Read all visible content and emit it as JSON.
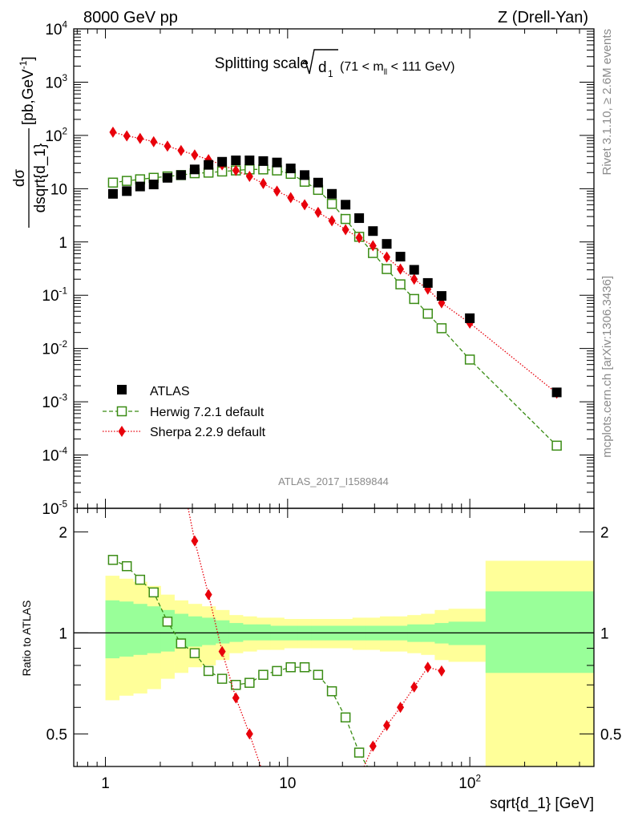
{
  "header": {
    "left": "8000 GeV pp",
    "right": "Z (Drell-Yan)"
  },
  "side_labels": {
    "rivet": "Rivet 3.1.10, ≥ 2.6M events",
    "mcplots": "mcplots.cern.ch [arXiv:1306.3436]"
  },
  "watermark": "ATLAS_2017_I1589844",
  "chart_data": [
    {
      "type": "scatter",
      "panel": "main",
      "title": "Splitting scale √d₁ (71 < m_ll < 111 GeV)",
      "title_parts": {
        "main": "Splitting scale",
        "root_arg": "d",
        "root_sub": "1",
        "range_pre": "(71 < m",
        "range_sub": "ll",
        "range_post": " < 111 GeV)"
      },
      "ylabel": "dσ/dsqrt{d_1} [pb,GeV⁻¹]",
      "ylabel_parts": {
        "numerator": "dσ",
        "denominator": "dsqrt{d_1}",
        "unit": "[pb,GeV",
        "unit_sup": "-1",
        "unit_close": "]"
      },
      "xlabel": "",
      "xscale": "log",
      "yscale": "log",
      "xlim": [
        0.67,
        480
      ],
      "ylim": [
        1e-05,
        10000
      ],
      "y_ticks": [
        {
          "value": 1e-05,
          "label_base": "10",
          "label_exp": "-5"
        },
        {
          "value": 0.0001,
          "label_base": "10",
          "label_exp": "-4"
        },
        {
          "value": 0.001,
          "label_base": "10",
          "label_exp": "-3"
        },
        {
          "value": 0.01,
          "label_base": "10",
          "label_exp": "-2"
        },
        {
          "value": 0.1,
          "label_base": "10",
          "label_exp": "-1"
        },
        {
          "value": 1,
          "label_base": "1",
          "label_exp": ""
        },
        {
          "value": 10,
          "label_base": "10",
          "label_exp": ""
        },
        {
          "value": 100,
          "label_base": "10",
          "label_exp": "2"
        },
        {
          "value": 1000,
          "label_base": "10",
          "label_exp": "3"
        },
        {
          "value": 10000,
          "label_base": "10",
          "label_exp": "4"
        }
      ],
      "legend_position": "bottom-left",
      "series": [
        {
          "name": "ATLAS",
          "marker": "filled-square",
          "color": "#000000",
          "x": [
            1.1,
            1.31,
            1.55,
            1.84,
            2.19,
            2.6,
            3.09,
            3.68,
            4.37,
            5.2,
            6.18,
            7.35,
            8.74,
            10.4,
            12.4,
            14.7,
            17.5,
            20.8,
            24.7,
            29.4,
            35.0,
            41.6,
            49.5,
            58.8,
            70.0,
            100,
            300
          ],
          "y": [
            8,
            9,
            11,
            12,
            16,
            18,
            23,
            28,
            32,
            34,
            34,
            33,
            31,
            24,
            18,
            13,
            8,
            5,
            2.8,
            1.6,
            0.92,
            0.53,
            0.3,
            0.17,
            0.097,
            0.037,
            0.0015
          ]
        },
        {
          "name": "Herwig 7.2.1 default",
          "marker": "open-square",
          "line": "dashed",
          "color": "#3a8c14",
          "x": [
            1.1,
            1.31,
            1.55,
            1.84,
            2.19,
            2.6,
            3.09,
            3.68,
            4.37,
            5.2,
            6.18,
            7.35,
            8.74,
            10.4,
            12.4,
            14.7,
            17.5,
            20.8,
            24.7,
            29.4,
            35.0,
            41.6,
            49.5,
            58.8,
            70.0,
            100,
            300
          ],
          "y": [
            13,
            14,
            15,
            16,
            17,
            18,
            19.5,
            20,
            21,
            22,
            23,
            23,
            22,
            19,
            13.5,
            9.5,
            5.2,
            2.7,
            1.25,
            0.62,
            0.31,
            0.16,
            0.085,
            0.045,
            0.024,
            0.0062,
            0.00015
          ]
        },
        {
          "name": "Sherpa 2.2.9 default",
          "marker": "filled-diamond",
          "line": "dotted",
          "color": "#e8000b",
          "x": [
            1.1,
            1.31,
            1.55,
            1.84,
            2.19,
            2.6,
            3.09,
            3.68,
            4.37,
            5.2,
            6.18,
            7.35,
            8.74,
            10.4,
            12.4,
            14.7,
            17.5,
            20.8,
            24.7,
            29.4,
            35.0,
            41.6,
            49.5,
            58.8,
            70.0,
            100,
            300
          ],
          "y": [
            115,
            98,
            88,
            76,
            63,
            52,
            43,
            35,
            28,
            22,
            17,
            12.5,
            9,
            6.8,
            5,
            3.6,
            2.5,
            1.7,
            1.2,
            0.85,
            0.52,
            0.31,
            0.2,
            0.13,
            0.072,
            0.03,
            0.00145
          ]
        }
      ]
    },
    {
      "type": "line",
      "panel": "ratio",
      "ylabel": "Ratio to ATLAS",
      "xlabel": "sqrt{d_1} [GeV]",
      "xscale": "log",
      "yscale": "log",
      "xlim": [
        0.67,
        480
      ],
      "ylim": [
        0.4,
        2.35
      ],
      "x_ticks": [
        {
          "value": 1,
          "label_base": "1",
          "label_exp": ""
        },
        {
          "value": 10,
          "label_base": "10",
          "label_exp": ""
        },
        {
          "value": 100,
          "label_base": "10",
          "label_exp": "2"
        }
      ],
      "y_ticks": [
        {
          "value": 0.5,
          "label": "0.5"
        },
        {
          "value": 1,
          "label": "1"
        },
        {
          "value": 2,
          "label": "2"
        }
      ],
      "uncertainty_bands": {
        "bin_edges": [
          1.0,
          1.19,
          1.42,
          1.69,
          2.01,
          2.39,
          2.84,
          3.38,
          4.02,
          4.78,
          5.68,
          6.76,
          8.04,
          9.56,
          11.4,
          13.5,
          16.1,
          19.1,
          22.7,
          27.0,
          32.1,
          38.2,
          45.4,
          54.0,
          64.2,
          76.4,
          122,
          480
        ],
        "total_up": [
          1.48,
          1.45,
          1.42,
          1.38,
          1.3,
          1.25,
          1.22,
          1.2,
          1.17,
          1.13,
          1.12,
          1.11,
          1.11,
          1.1,
          1.1,
          1.1,
          1.1,
          1.1,
          1.11,
          1.11,
          1.12,
          1.12,
          1.13,
          1.14,
          1.17,
          1.18,
          1.64
        ],
        "total_down": [
          0.63,
          0.65,
          0.66,
          0.68,
          0.73,
          0.76,
          0.79,
          0.8,
          0.83,
          0.87,
          0.88,
          0.89,
          0.89,
          0.9,
          0.9,
          0.9,
          0.9,
          0.9,
          0.89,
          0.89,
          0.88,
          0.88,
          0.87,
          0.86,
          0.83,
          0.82,
          0.4
        ],
        "stat_up": [
          1.25,
          1.24,
          1.22,
          1.2,
          1.17,
          1.14,
          1.12,
          1.11,
          1.09,
          1.07,
          1.06,
          1.06,
          1.05,
          1.05,
          1.05,
          1.05,
          1.05,
          1.05,
          1.05,
          1.05,
          1.05,
          1.05,
          1.06,
          1.06,
          1.07,
          1.08,
          1.33
        ],
        "stat_down": [
          0.84,
          0.85,
          0.86,
          0.87,
          0.88,
          0.9,
          0.91,
          0.92,
          0.93,
          0.94,
          0.95,
          0.95,
          0.95,
          0.95,
          0.95,
          0.95,
          0.95,
          0.95,
          0.95,
          0.95,
          0.95,
          0.95,
          0.94,
          0.94,
          0.93,
          0.92,
          0.76
        ],
        "colors": {
          "total": "#ffff99",
          "stat": "#99ff99"
        }
      },
      "series": [
        {
          "name": "Herwig 7.2.1 default",
          "marker": "open-square",
          "line": "dashed",
          "color": "#3a8c14",
          "x": [
            1.1,
            1.31,
            1.55,
            1.84,
            2.19,
            2.6,
            3.09,
            3.68,
            4.37,
            5.2,
            6.18,
            7.35,
            8.74,
            10.4,
            12.4,
            14.7,
            17.5,
            20.8,
            24.7,
            29.4
          ],
          "y": [
            1.65,
            1.58,
            1.44,
            1.32,
            1.08,
            0.93,
            0.87,
            0.77,
            0.73,
            0.7,
            0.71,
            0.75,
            0.77,
            0.79,
            0.79,
            0.75,
            0.67,
            0.56,
            0.44,
            0.375
          ]
        },
        {
          "name": "Sherpa 2.2.9 default",
          "marker": "filled-diamond",
          "line": "dotted",
          "color": "#e8000b",
          "x": [
            2.6,
            3.09,
            3.68,
            4.37,
            5.2,
            6.18,
            7.35,
            24.7,
            29.4,
            35.0,
            41.6,
            49.5,
            58.8,
            70.0
          ],
          "y": [
            3.0,
            1.88,
            1.3,
            0.88,
            0.64,
            0.5,
            0.38,
            0.37,
            0.46,
            0.53,
            0.6,
            0.69,
            0.79,
            0.77
          ]
        }
      ]
    }
  ]
}
